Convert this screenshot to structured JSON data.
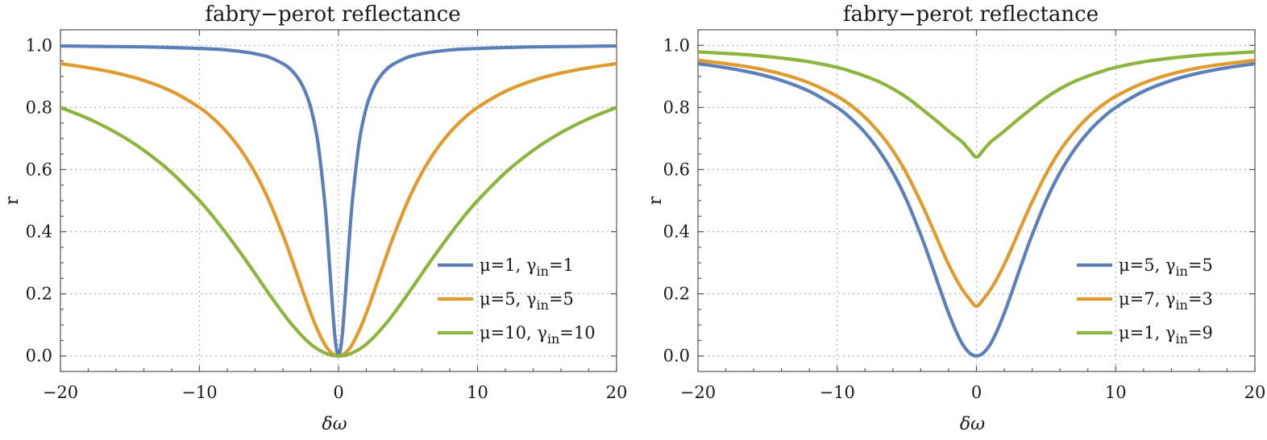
{
  "chart_data": [
    {
      "type": "line",
      "title": "fabry−perot reflectance",
      "xlabel": "δω",
      "ylabel": "r",
      "xlim": [
        -20,
        20
      ],
      "ylim": [
        -0.05,
        1.05
      ],
      "xticks": [
        -20,
        -10,
        0,
        10,
        20
      ],
      "xtick_labels": [
        "−20",
        "−10",
        "0",
        "10",
        "20"
      ],
      "yticks": [
        0.0,
        0.2,
        0.4,
        0.6,
        0.8,
        1.0
      ],
      "ytick_labels": [
        "0.0",
        "0.2",
        "0.4",
        "0.6",
        "0.8",
        "1.0"
      ],
      "grid": true,
      "legend_position": "bottom-right",
      "x": [
        -20,
        -18,
        -16,
        -14,
        -12,
        -10,
        -9,
        -8,
        -7,
        -6,
        -5,
        -4,
        -3.5,
        -3,
        -2.5,
        -2,
        -1.5,
        -1,
        -0.75,
        -0.5,
        -0.25,
        0,
        0.25,
        0.5,
        0.75,
        1,
        1.5,
        2,
        2.5,
        3,
        3.5,
        4,
        5,
        6,
        7,
        8,
        9,
        10,
        12,
        14,
        16,
        18,
        20
      ],
      "series": [
        {
          "name": "μ=1, γin=1",
          "color": "#5b7fba",
          "values": [
            0.998,
            0.997,
            0.996,
            0.995,
            0.993,
            0.99,
            0.988,
            0.985,
            0.98,
            0.973,
            0.962,
            0.941,
            0.925,
            0.9,
            0.862,
            0.8,
            0.692,
            0.5,
            0.36,
            0.2,
            0.059,
            0.0,
            0.059,
            0.2,
            0.36,
            0.5,
            0.692,
            0.8,
            0.862,
            0.9,
            0.925,
            0.941,
            0.962,
            0.973,
            0.98,
            0.985,
            0.988,
            0.99,
            0.993,
            0.995,
            0.996,
            0.997,
            0.998
          ]
        },
        {
          "name": "μ=5, γin=5",
          "color": "#e09a2e",
          "values": [
            0.941,
            0.928,
            0.911,
            0.887,
            0.852,
            0.8,
            0.764,
            0.719,
            0.662,
            0.59,
            0.5,
            0.39,
            0.329,
            0.265,
            0.2,
            0.138,
            0.083,
            0.038,
            0.022,
            0.01,
            0.002,
            0.0,
            0.002,
            0.01,
            0.022,
            0.038,
            0.083,
            0.138,
            0.2,
            0.265,
            0.329,
            0.39,
            0.5,
            0.59,
            0.662,
            0.719,
            0.764,
            0.8,
            0.852,
            0.887,
            0.911,
            0.928,
            0.941
          ]
        },
        {
          "name": "μ=10, γin=10",
          "color": "#8db43c",
          "values": [
            0.8,
            0.764,
            0.719,
            0.662,
            0.59,
            0.5,
            0.448,
            0.39,
            0.329,
            0.265,
            0.2,
            0.138,
            0.109,
            0.083,
            0.059,
            0.038,
            0.022,
            0.01,
            0.006,
            0.002,
            0.001,
            0.0,
            0.001,
            0.002,
            0.006,
            0.01,
            0.022,
            0.038,
            0.059,
            0.083,
            0.109,
            0.138,
            0.2,
            0.265,
            0.329,
            0.39,
            0.448,
            0.5,
            0.59,
            0.662,
            0.719,
            0.764,
            0.8
          ]
        }
      ]
    },
    {
      "type": "line",
      "title": "fabry−perot reflectance",
      "xlabel": "δω",
      "ylabel": "r",
      "xlim": [
        -20,
        20
      ],
      "ylim": [
        -0.05,
        1.05
      ],
      "xticks": [
        -20,
        -10,
        0,
        10,
        20
      ],
      "xtick_labels": [
        "−20",
        "−10",
        "0",
        "10",
        "20"
      ],
      "yticks": [
        0.0,
        0.2,
        0.4,
        0.6,
        0.8,
        1.0
      ],
      "ytick_labels": [
        "0.0",
        "0.2",
        "0.4",
        "0.6",
        "0.8",
        "1.0"
      ],
      "grid": true,
      "legend_position": "bottom-right",
      "x": [
        -20,
        -18,
        -16,
        -14,
        -12,
        -10,
        -9,
        -8,
        -7,
        -6,
        -5,
        -4,
        -3.5,
        -3,
        -2.5,
        -2,
        -1.5,
        -1,
        -0.5,
        0,
        0.5,
        1,
        1.5,
        2,
        2.5,
        3,
        3.5,
        4,
        5,
        6,
        7,
        8,
        9,
        10,
        12,
        14,
        16,
        18,
        20
      ],
      "series": [
        {
          "name": "μ=5, γin=5",
          "color": "#5b7fba",
          "values": [
            0.941,
            0.928,
            0.911,
            0.887,
            0.852,
            0.8,
            0.764,
            0.719,
            0.662,
            0.59,
            0.5,
            0.39,
            0.329,
            0.265,
            0.2,
            0.138,
            0.083,
            0.038,
            0.01,
            0.0,
            0.01,
            0.038,
            0.083,
            0.138,
            0.2,
            0.265,
            0.329,
            0.39,
            0.5,
            0.59,
            0.662,
            0.719,
            0.764,
            0.8,
            0.852,
            0.887,
            0.911,
            0.928,
            0.941
          ]
        },
        {
          "name": "μ=7, γin=3",
          "color": "#e09a2e",
          "values": [
            0.952,
            0.941,
            0.928,
            0.908,
            0.879,
            0.836,
            0.806,
            0.768,
            0.72,
            0.661,
            0.586,
            0.496,
            0.447,
            0.396,
            0.344,
            0.295,
            0.251,
            0.213,
            0.183,
            0.16,
            0.183,
            0.213,
            0.251,
            0.295,
            0.344,
            0.396,
            0.447,
            0.496,
            0.586,
            0.661,
            0.72,
            0.768,
            0.806,
            0.836,
            0.879,
            0.908,
            0.928,
            0.941,
            0.952
          ]
        },
        {
          "name": "μ=1, γin=9",
          "color": "#8db43c",
          "values": [
            0.979,
            0.974,
            0.968,
            0.959,
            0.947,
            0.929,
            0.916,
            0.901,
            0.883,
            0.86,
            0.832,
            0.798,
            0.78,
            0.762,
            0.743,
            0.724,
            0.706,
            0.688,
            0.663,
            0.64,
            0.663,
            0.688,
            0.706,
            0.724,
            0.743,
            0.762,
            0.78,
            0.798,
            0.832,
            0.86,
            0.883,
            0.901,
            0.916,
            0.929,
            0.947,
            0.959,
            0.968,
            0.974,
            0.979
          ]
        }
      ]
    }
  ]
}
